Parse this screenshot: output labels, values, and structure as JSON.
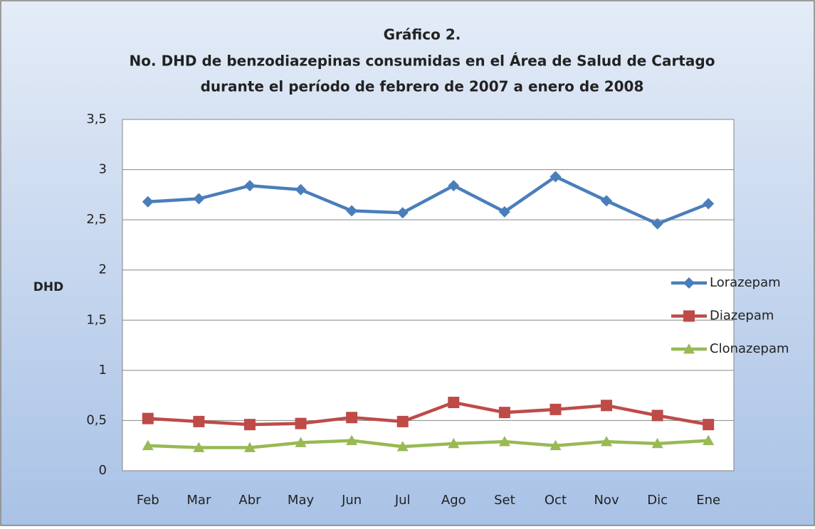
{
  "chart_data": {
    "type": "line",
    "title": "Gráfico 2.",
    "subtitle": [
      "No. DHD de benzodiazepinas consumidas en el Área de Salud de Cartago",
      "durante el período de febrero de 2007 a enero de 2008"
    ],
    "ylabel": "DHD",
    "categories": [
      "Feb",
      "Mar",
      "Abr",
      "May",
      "Jun",
      "Jul",
      "Ago",
      "Set",
      "Oct",
      "Nov",
      "Dic",
      "Ene"
    ],
    "series": [
      {
        "name": "Lorazepam",
        "color": "#4a7ebb",
        "marker": "diamond",
        "values": [
          2.68,
          2.71,
          2.84,
          2.8,
          2.59,
          2.57,
          2.84,
          2.58,
          2.93,
          2.69,
          2.46,
          2.66
        ]
      },
      {
        "name": "Diazepam",
        "color": "#be4b48",
        "marker": "square",
        "values": [
          0.52,
          0.49,
          0.46,
          0.47,
          0.53,
          0.49,
          0.68,
          0.58,
          0.61,
          0.65,
          0.55,
          0.46
        ]
      },
      {
        "name": "Clonazepam",
        "color": "#98b954",
        "marker": "triangle",
        "values": [
          0.25,
          0.23,
          0.23,
          0.28,
          0.3,
          0.24,
          0.27,
          0.29,
          0.25,
          0.29,
          0.27,
          0.3
        ]
      }
    ],
    "ylim": [
      0,
      3.5
    ],
    "yticks": [
      0,
      {
        "value": 0.5,
        "label": "0,5"
      },
      1,
      {
        "value": 1.5,
        "label": "1,5"
      },
      2,
      {
        "value": 2.5,
        "label": "2,5"
      },
      3,
      {
        "value": 3.5,
        "label": "3,5"
      }
    ],
    "grid": true,
    "legend": "right"
  }
}
